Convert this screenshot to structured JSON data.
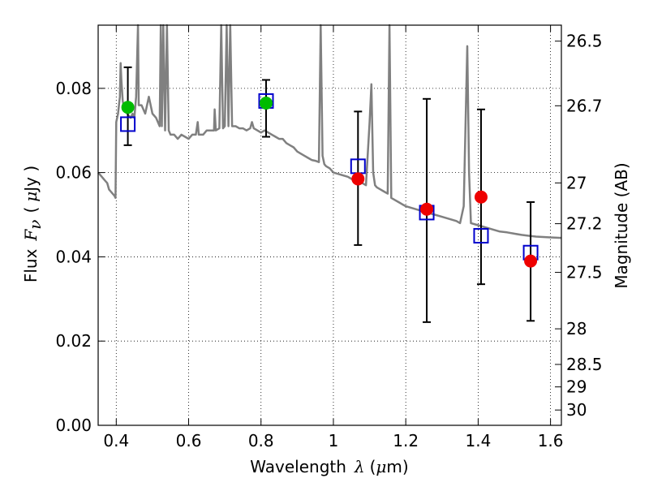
{
  "chart_data": {
    "type": "scatter",
    "x_axis": {
      "label_prefix": "Wavelength",
      "label_symbol": "λ",
      "label_unit_open": "(",
      "label_unit_mu": "μ",
      "label_unit_rest": "m)",
      "range": [
        0.35,
        1.63
      ],
      "ticks": [
        {
          "value": 0.4,
          "label": "0.4"
        },
        {
          "value": 0.6,
          "label": "0.6"
        },
        {
          "value": 0.8,
          "label": "0.8"
        },
        {
          "value": 1.0,
          "label": "1"
        },
        {
          "value": 1.2,
          "label": "1.2"
        },
        {
          "value": 1.4,
          "label": "1.4"
        },
        {
          "value": 1.6,
          "label": "1.6"
        }
      ]
    },
    "y_axis": {
      "label_prefix": "Flux",
      "label_symbol": "F",
      "label_subscript": "ν",
      "label_unit_open": "(",
      "label_unit_mu": "μ",
      "label_unit_rest": "Jy )",
      "range": [
        0.0,
        0.095
      ],
      "ticks": [
        {
          "value": 0.0,
          "label": "0.00"
        },
        {
          "value": 0.02,
          "label": "0.02"
        },
        {
          "value": 0.04,
          "label": "0.04"
        },
        {
          "value": 0.06,
          "label": "0.06"
        },
        {
          "value": 0.08,
          "label": "0.08"
        }
      ]
    },
    "y2_axis": {
      "label": "Magnitude (AB)",
      "ticks": [
        {
          "value": 26.5,
          "label": "26.5"
        },
        {
          "value": 26.7,
          "label": "26.7"
        },
        {
          "value": 27.0,
          "label": "27"
        },
        {
          "value": 27.2,
          "label": "27.2"
        },
        {
          "value": 27.5,
          "label": "27.5"
        },
        {
          "value": 28.0,
          "label": "28"
        },
        {
          "value": 28.5,
          "label": "28.5"
        },
        {
          "value": 29.0,
          "label": "29"
        },
        {
          "value": 30.0,
          "label": "30"
        }
      ]
    },
    "grid": true,
    "model_spectrum": {
      "color": "#808080",
      "points": [
        [
          0.35,
          0.06
        ],
        [
          0.36,
          0.059
        ],
        [
          0.37,
          0.058
        ],
        [
          0.375,
          0.0575
        ],
        [
          0.38,
          0.056
        ],
        [
          0.385,
          0.0555
        ],
        [
          0.39,
          0.055
        ],
        [
          0.395,
          0.0545
        ],
        [
          0.398,
          0.054
        ],
        [
          0.4,
          0.072
        ],
        [
          0.405,
          0.074
        ],
        [
          0.41,
          0.078
        ],
        [
          0.412,
          0.086
        ],
        [
          0.414,
          0.082
        ],
        [
          0.418,
          0.077
        ],
        [
          0.42,
          0.076
        ],
        [
          0.43,
          0.074
        ],
        [
          0.44,
          0.073
        ],
        [
          0.445,
          0.074
        ],
        [
          0.45,
          0.073
        ],
        [
          0.455,
          0.078
        ],
        [
          0.46,
          0.095
        ],
        [
          0.462,
          0.076
        ],
        [
          0.47,
          0.076
        ],
        [
          0.48,
          0.074
        ],
        [
          0.49,
          0.078
        ],
        [
          0.495,
          0.076
        ],
        [
          0.5,
          0.074
        ],
        [
          0.51,
          0.073
        ],
        [
          0.515,
          0.072
        ],
        [
          0.52,
          0.071
        ],
        [
          0.523,
          0.095
        ],
        [
          0.526,
          0.071
        ],
        [
          0.53,
          0.095
        ],
        [
          0.535,
          0.07
        ],
        [
          0.54,
          0.095
        ],
        [
          0.545,
          0.07
        ],
        [
          0.55,
          0.069
        ],
        [
          0.56,
          0.069
        ],
        [
          0.57,
          0.068
        ],
        [
          0.58,
          0.069
        ],
        [
          0.59,
          0.0685
        ],
        [
          0.6,
          0.068
        ],
        [
          0.61,
          0.069
        ],
        [
          0.62,
          0.069
        ],
        [
          0.625,
          0.072
        ],
        [
          0.628,
          0.069
        ],
        [
          0.64,
          0.069
        ],
        [
          0.65,
          0.07
        ],
        [
          0.66,
          0.07
        ],
        [
          0.67,
          0.07
        ],
        [
          0.672,
          0.075
        ],
        [
          0.675,
          0.07
        ],
        [
          0.685,
          0.0705
        ],
        [
          0.69,
          0.095
        ],
        [
          0.695,
          0.0705
        ],
        [
          0.7,
          0.071
        ],
        [
          0.705,
          0.095
        ],
        [
          0.71,
          0.071
        ],
        [
          0.715,
          0.095
        ],
        [
          0.72,
          0.071
        ],
        [
          0.73,
          0.071
        ],
        [
          0.74,
          0.0705
        ],
        [
          0.75,
          0.0705
        ],
        [
          0.76,
          0.07
        ],
        [
          0.77,
          0.0705
        ],
        [
          0.775,
          0.072
        ],
        [
          0.78,
          0.0705
        ],
        [
          0.79,
          0.07
        ],
        [
          0.8,
          0.0695
        ],
        [
          0.81,
          0.07
        ],
        [
          0.82,
          0.0695
        ],
        [
          0.83,
          0.069
        ],
        [
          0.84,
          0.0685
        ],
        [
          0.85,
          0.068
        ],
        [
          0.86,
          0.068
        ],
        [
          0.87,
          0.067
        ],
        [
          0.88,
          0.0665
        ],
        [
          0.89,
          0.066
        ],
        [
          0.9,
          0.065
        ],
        [
          0.91,
          0.0645
        ],
        [
          0.92,
          0.064
        ],
        [
          0.93,
          0.0635
        ],
        [
          0.94,
          0.063
        ],
        [
          0.95,
          0.0628
        ],
        [
          0.96,
          0.0625
        ],
        [
          0.965,
          0.095
        ],
        [
          0.97,
          0.064
        ],
        [
          0.975,
          0.062
        ],
        [
          0.98,
          0.0615
        ],
        [
          0.99,
          0.061
        ],
        [
          1.0,
          0.06
        ],
        [
          1.02,
          0.0595
        ],
        [
          1.04,
          0.059
        ],
        [
          1.06,
          0.058
        ],
        [
          1.08,
          0.0575
        ],
        [
          1.09,
          0.057
        ],
        [
          1.1,
          0.072
        ],
        [
          1.105,
          0.081
        ],
        [
          1.11,
          0.06
        ],
        [
          1.115,
          0.057
        ],
        [
          1.12,
          0.0565
        ],
        [
          1.13,
          0.056
        ],
        [
          1.14,
          0.0555
        ],
        [
          1.15,
          0.055
        ],
        [
          1.155,
          0.095
        ],
        [
          1.16,
          0.054
        ],
        [
          1.17,
          0.0535
        ],
        [
          1.18,
          0.053
        ],
        [
          1.19,
          0.0525
        ],
        [
          1.2,
          0.052
        ],
        [
          1.22,
          0.0515
        ],
        [
          1.24,
          0.051
        ],
        [
          1.26,
          0.0505
        ],
        [
          1.28,
          0.05
        ],
        [
          1.3,
          0.0495
        ],
        [
          1.32,
          0.049
        ],
        [
          1.34,
          0.0485
        ],
        [
          1.35,
          0.048
        ],
        [
          1.36,
          0.052
        ],
        [
          1.37,
          0.09
        ],
        [
          1.375,
          0.06
        ],
        [
          1.38,
          0.048
        ],
        [
          1.4,
          0.0475
        ],
        [
          1.42,
          0.047
        ],
        [
          1.44,
          0.0465
        ],
        [
          1.46,
          0.046
        ],
        [
          1.48,
          0.0458
        ],
        [
          1.5,
          0.0455
        ],
        [
          1.52,
          0.0452
        ],
        [
          1.54,
          0.045
        ],
        [
          1.56,
          0.0448
        ],
        [
          1.58,
          0.0447
        ],
        [
          1.6,
          0.0446
        ],
        [
          1.63,
          0.0445
        ]
      ]
    },
    "model_photometry": {
      "marker": "open-square",
      "color": "#0000cc",
      "points": [
        {
          "x": 0.432,
          "y": 0.0715
        },
        {
          "x": 0.814,
          "y": 0.077
        },
        {
          "x": 1.068,
          "y": 0.0615
        },
        {
          "x": 1.258,
          "y": 0.0505
        },
        {
          "x": 1.408,
          "y": 0.045
        },
        {
          "x": 1.545,
          "y": 0.041
        }
      ]
    },
    "observed_optical": {
      "marker": "filled-circle",
      "color": "#00bb00",
      "points": [
        {
          "x": 0.432,
          "y": 0.0755,
          "err_low": 0.0665,
          "err_high": 0.085
        },
        {
          "x": 0.814,
          "y": 0.0765,
          "err_low": 0.0685,
          "err_high": 0.082
        }
      ]
    },
    "observed_nir": {
      "marker": "filled-circle",
      "color": "#ee0000",
      "points": [
        {
          "x": 1.068,
          "y": 0.0585,
          "err_low": 0.0428,
          "err_high": 0.0745
        },
        {
          "x": 1.258,
          "y": 0.0513,
          "err_low": 0.0245,
          "err_high": 0.0775
        },
        {
          "x": 1.408,
          "y": 0.0542,
          "err_low": 0.0335,
          "err_high": 0.075
        },
        {
          "x": 1.545,
          "y": 0.039,
          "err_low": 0.0248,
          "err_high": 0.053
        }
      ]
    }
  }
}
